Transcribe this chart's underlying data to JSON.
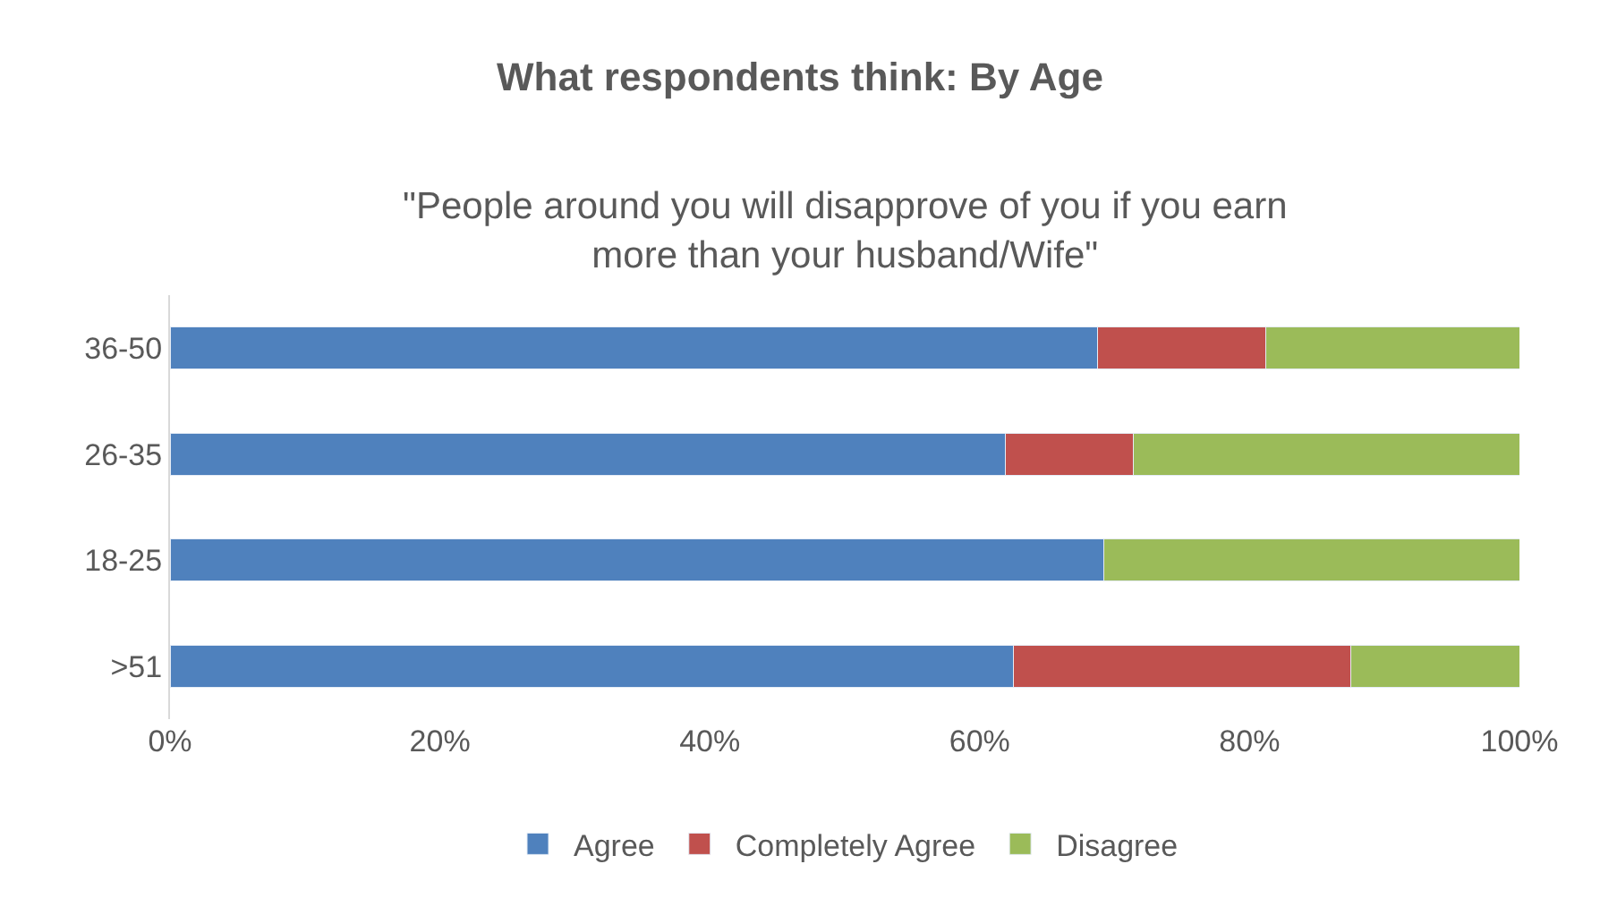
{
  "chart_data": {
    "type": "bar",
    "orientation": "horizontal",
    "stacked": true,
    "title": "What respondents think: By Age",
    "subtitle": "\"People around you will disapprove of you if you earn more than your husband/Wife\"",
    "categories": [
      "36-50",
      "26-35",
      "18-25",
      ">51"
    ],
    "series": [
      {
        "name": "Agree",
        "color": "#4f81bd",
        "values": [
          68.7,
          61.9,
          69.2,
          62.5
        ]
      },
      {
        "name": "Completely Agree",
        "color": "#c0504d",
        "values": [
          12.5,
          9.5,
          0,
          25
        ]
      },
      {
        "name": "Disagree",
        "color": "#9bbb59",
        "values": [
          18.8,
          28.6,
          30.8,
          12.5
        ]
      }
    ],
    "xlim": [
      0,
      100
    ],
    "xticks": [
      {
        "value": 0,
        "label": "0%"
      },
      {
        "value": 20,
        "label": "20%"
      },
      {
        "value": 40,
        "label": "40%"
      },
      {
        "value": 60,
        "label": "60%"
      },
      {
        "value": 80,
        "label": "80%"
      },
      {
        "value": 100,
        "label": "100%"
      }
    ],
    "legend": "bottom"
  }
}
